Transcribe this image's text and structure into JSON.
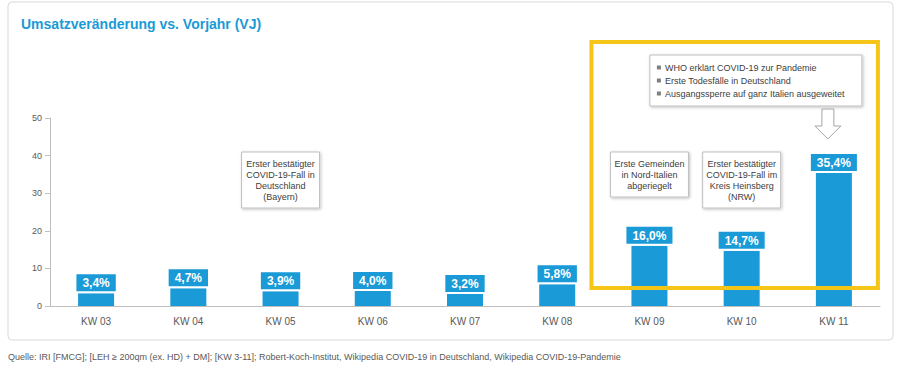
{
  "chart_data": {
    "type": "bar",
    "title": "Umsatzveränderung vs. Vorjahr (VJ)",
    "categories": [
      "KW 03",
      "KW 04",
      "KW 05",
      "KW 06",
      "KW 07",
      "KW 08",
      "KW 09",
      "KW 10",
      "KW 11"
    ],
    "values": [
      3.4,
      4.7,
      3.9,
      4.0,
      3.2,
      5.8,
      16.0,
      14.7,
      35.4
    ],
    "value_labels": [
      "3,4%",
      "4,7%",
      "3,9%",
      "4,0%",
      "3,2%",
      "5,8%",
      "16,0%",
      "14,7%",
      "35,4%"
    ],
    "color": "#1a9ad6",
    "ylim": [
      0,
      50
    ],
    "yticks": [
      0,
      10,
      20,
      30,
      40,
      50
    ],
    "grid": false,
    "data_labels": true,
    "annotations": [
      {
        "category": "KW 05",
        "lines": [
          "Erster bestätigter",
          "COVID-19-Fall in",
          "Deutschland",
          "(Bayern)"
        ]
      },
      {
        "category": "KW 09",
        "lines": [
          "Erste Gemeinden",
          "in Nord-Italien",
          "abgeriegelt"
        ]
      },
      {
        "category": "KW 10",
        "lines": [
          "Erster bestätigter",
          "COVID-19-Fall im",
          "Kreis Heinsberg",
          "(NRW)"
        ]
      },
      {
        "category": "KW 11",
        "bullets": [
          "WHO erklärt COVID-19 zur Pandemie",
          "Erste Todesfälle in Deutschland",
          "Ausgangssperre auf ganz Italien ausgeweitet"
        ]
      }
    ],
    "highlight": [
      "KW 09",
      "KW 11"
    ],
    "source": "Quelle: IRI [FMCG]; [LEH ≥ 200qm (ex. HD) + DM]; [KW 3-11]; Robert-Koch-Institut, Wikipedia COVID-19 in Deutschland, Wikipedia COVID-19-Pandemie"
  }
}
